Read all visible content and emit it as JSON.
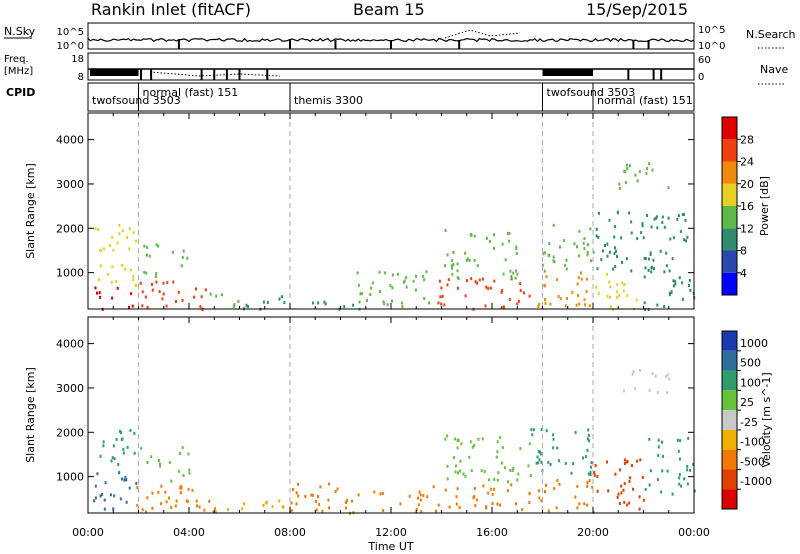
{
  "header": {
    "station": "Rankin Inlet (fitACF)",
    "beam": "Beam 15",
    "date": "15/Sep/2015"
  },
  "summary": {
    "nsky_label": "N.Sky",
    "nsky_ticks": [
      "10^5",
      "10^0"
    ],
    "nsearch_label": "N.Search",
    "freq_label": "Freq.",
    "freq_unit": "[MHz]",
    "freq_ticks": [
      "18",
      "8"
    ],
    "nave_label": "Nave",
    "nave_ticks": [
      "60",
      "0"
    ],
    "cpid_label": "CPID"
  },
  "chart_data": [
    {
      "type": "table",
      "name": "CPID",
      "x_unit": "hours UT",
      "segments": [
        {
          "start": 0.0,
          "end": 2.0,
          "name": "twofsound 3503"
        },
        {
          "start": 2.0,
          "end": 8.0,
          "name": "normal (fast) 151"
        },
        {
          "start": 8.0,
          "end": 18.0,
          "name": "themis 3300"
        },
        {
          "start": 18.0,
          "end": 20.0,
          "name": "twofsound 3503"
        },
        {
          "start": 20.0,
          "end": 24.0,
          "name": "normal (fast) 151"
        }
      ]
    },
    {
      "type": "heatmap",
      "title": "Power",
      "xlabel": "Time UT",
      "ylabel": "Slant Range [km]",
      "colorbar_label": "Power [dB]",
      "xlim": [
        0,
        24
      ],
      "ylim": [
        180,
        4600
      ],
      "x_ticks": [
        "00:00",
        "04:00",
        "08:00",
        "12:00",
        "16:00",
        "20:00",
        "00:00"
      ],
      "y_ticks": [
        "1000",
        "2000",
        "3000",
        "4000"
      ],
      "colorbar_ticks": [
        "4",
        "8",
        "12",
        "16",
        "20",
        "24",
        "28"
      ],
      "colorbar_range": [
        0,
        32
      ],
      "colors": [
        "#0000ff",
        "#2848b0",
        "#2f8c6e",
        "#60b848",
        "#e8d020",
        "#f08a0a",
        "#f04010",
        "#e00000"
      ],
      "regions": [
        {
          "t0": 0.2,
          "t1": 1.9,
          "r0": 200,
          "r1": 700,
          "v": 28
        },
        {
          "t0": 0.2,
          "t1": 1.9,
          "r0": 700,
          "r1": 2100,
          "v": 18
        },
        {
          "t0": 1.9,
          "t1": 4.8,
          "r0": 200,
          "r1": 900,
          "v": 26
        },
        {
          "t0": 2.0,
          "t1": 4.0,
          "r0": 900,
          "r1": 1700,
          "v": 14
        },
        {
          "t0": 4.8,
          "t1": 6.0,
          "r0": 200,
          "r1": 600,
          "v": 14
        },
        {
          "t0": 6.0,
          "t1": 8.0,
          "r0": 200,
          "r1": 500,
          "v": 10
        },
        {
          "t0": 8.0,
          "t1": 10.5,
          "r0": 200,
          "r1": 500,
          "v": 9
        },
        {
          "t0": 10.5,
          "t1": 13.5,
          "r0": 200,
          "r1": 1100,
          "v": 14
        },
        {
          "t0": 13.5,
          "t1": 17.5,
          "r0": 200,
          "r1": 900,
          "v": 27
        },
        {
          "t0": 14.0,
          "t1": 17.0,
          "r0": 900,
          "r1": 2000,
          "v": 13
        },
        {
          "t0": 17.5,
          "t1": 20.0,
          "r0": 200,
          "r1": 1000,
          "v": 20
        },
        {
          "t0": 17.7,
          "t1": 20.0,
          "r0": 1000,
          "r1": 2100,
          "v": 14
        },
        {
          "t0": 20.0,
          "t1": 22.0,
          "r0": 200,
          "r1": 1000,
          "v": 17
        },
        {
          "t0": 20.0,
          "t1": 23.9,
          "r0": 1000,
          "r1": 2400,
          "v": 11
        },
        {
          "t0": 21.0,
          "t1": 23.0,
          "r0": 2900,
          "r1": 3500,
          "v": 13
        },
        {
          "t0": 22.0,
          "t1": 24.0,
          "r0": 200,
          "r1": 1000,
          "v": 9
        }
      ]
    },
    {
      "type": "heatmap",
      "title": "Velocity",
      "xlabel": "Time UT",
      "ylabel": "Slant Range [km]",
      "colorbar_label": "Velocity [m s^-1]",
      "xlim": [
        0,
        24
      ],
      "ylim": [
        180,
        4600
      ],
      "x_ticks": [
        "00:00",
        "04:00",
        "08:00",
        "12:00",
        "16:00",
        "20:00",
        "00:00"
      ],
      "y_ticks": [
        "1000",
        "2000",
        "3000",
        "4000"
      ],
      "colorbar_ticks": [
        "1000",
        "500",
        "100",
        "25",
        "-25",
        "-100",
        "-500",
        "-1000"
      ],
      "colors": [
        "#1a3ab0",
        "#2f6f9c",
        "#2f9c70",
        "#66c23a",
        "#c8c8c8",
        "#f0b000",
        "#f07a00",
        "#e04000",
        "#d80000"
      ],
      "regions": [
        {
          "t0": 0.2,
          "t1": 1.9,
          "r0": 1200,
          "r1": 2100,
          "v": 2
        },
        {
          "t0": 0.2,
          "t1": 1.9,
          "r0": 200,
          "r1": 1200,
          "v": 1
        },
        {
          "t0": 1.9,
          "t1": 5.0,
          "r0": 200,
          "r1": 900,
          "v": 6
        },
        {
          "t0": 2.0,
          "t1": 4.0,
          "r0": 900,
          "r1": 1700,
          "v": 3
        },
        {
          "t0": 5.0,
          "t1": 8.0,
          "r0": 200,
          "r1": 500,
          "v": 5
        },
        {
          "t0": 8.0,
          "t1": 13.5,
          "r0": 200,
          "r1": 900,
          "v": 6
        },
        {
          "t0": 13.5,
          "t1": 17.5,
          "r0": 200,
          "r1": 900,
          "v": 6
        },
        {
          "t0": 14.0,
          "t1": 17.5,
          "r0": 900,
          "r1": 2000,
          "v": 3
        },
        {
          "t0": 17.5,
          "t1": 20.0,
          "r0": 200,
          "r1": 1000,
          "v": 6
        },
        {
          "t0": 17.5,
          "t1": 20.0,
          "r0": 1000,
          "r1": 2100,
          "v": 2
        },
        {
          "t0": 20.0,
          "t1": 22.0,
          "r0": 200,
          "r1": 1500,
          "v": 7
        },
        {
          "t0": 21.0,
          "t1": 23.0,
          "r0": 2900,
          "r1": 3500,
          "v": 4
        },
        {
          "t0": 22.0,
          "t1": 24.0,
          "r0": 600,
          "r1": 2000,
          "v": 2
        }
      ]
    }
  ]
}
